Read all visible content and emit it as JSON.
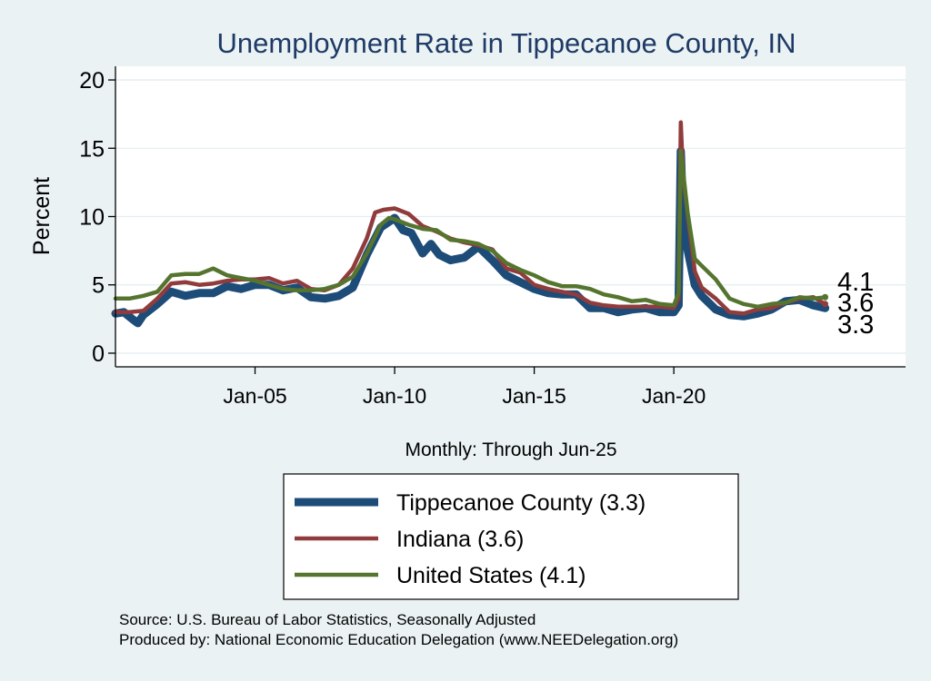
{
  "chart_data": {
    "type": "line",
    "title": "Unemployment Rate in Tippecanoe  County, IN",
    "xlabel": "Monthly: Through Jun-25",
    "ylabel": "Percent",
    "ylim": [
      -1,
      21
    ],
    "y_ticks": [
      0,
      5,
      10,
      15,
      20
    ],
    "y_tick_labels": [
      "0",
      "5",
      "10",
      "15",
      "20"
    ],
    "x_range": [
      2000.0,
      2028.3
    ],
    "x_ticks": [
      2005,
      2010,
      2015,
      2020
    ],
    "x_tick_labels": [
      "Jan-05",
      "Jan-10",
      "Jan-15",
      "Jan-20"
    ],
    "grid": true,
    "legend_position": "bottom",
    "series": [
      {
        "name": "United States",
        "legend_label": "United States (4.1)",
        "color": "#55752f",
        "end_label": "4.1",
        "points": [
          [
            2000.0,
            4.0
          ],
          [
            2000.5,
            4.0
          ],
          [
            2001.0,
            4.2
          ],
          [
            2001.5,
            4.5
          ],
          [
            2002.0,
            5.7
          ],
          [
            2002.5,
            5.8
          ],
          [
            2003.0,
            5.8
          ],
          [
            2003.5,
            6.2
          ],
          [
            2004.0,
            5.7
          ],
          [
            2004.5,
            5.5
          ],
          [
            2005.0,
            5.3
          ],
          [
            2005.5,
            5.0
          ],
          [
            2006.0,
            4.7
          ],
          [
            2006.5,
            4.6
          ],
          [
            2007.0,
            4.6
          ],
          [
            2007.5,
            4.7
          ],
          [
            2008.0,
            5.0
          ],
          [
            2008.5,
            5.6
          ],
          [
            2009.0,
            7.3
          ],
          [
            2009.5,
            9.4
          ],
          [
            2009.8,
            9.9
          ],
          [
            2010.0,
            9.8
          ],
          [
            2010.5,
            9.4
          ],
          [
            2011.0,
            9.1
          ],
          [
            2011.5,
            9.0
          ],
          [
            2012.0,
            8.3
          ],
          [
            2012.5,
            8.2
          ],
          [
            2013.0,
            8.0
          ],
          [
            2013.5,
            7.5
          ],
          [
            2014.0,
            6.6
          ],
          [
            2014.5,
            6.1
          ],
          [
            2015.0,
            5.7
          ],
          [
            2015.5,
            5.2
          ],
          [
            2016.0,
            4.9
          ],
          [
            2016.5,
            4.9
          ],
          [
            2017.0,
            4.7
          ],
          [
            2017.5,
            4.3
          ],
          [
            2018.0,
            4.1
          ],
          [
            2018.5,
            3.8
          ],
          [
            2019.0,
            3.9
          ],
          [
            2019.5,
            3.6
          ],
          [
            2020.0,
            3.5
          ],
          [
            2020.17,
            4.4
          ],
          [
            2020.25,
            14.8
          ],
          [
            2020.33,
            13.3
          ],
          [
            2020.5,
            10.2
          ],
          [
            2020.75,
            6.9
          ],
          [
            2021.0,
            6.4
          ],
          [
            2021.5,
            5.4
          ],
          [
            2022.0,
            4.0
          ],
          [
            2022.5,
            3.6
          ],
          [
            2023.0,
            3.4
          ],
          [
            2023.5,
            3.6
          ],
          [
            2024.0,
            3.7
          ],
          [
            2024.5,
            4.1
          ],
          [
            2025.0,
            4.0
          ],
          [
            2025.42,
            4.1
          ]
        ]
      },
      {
        "name": "Indiana",
        "legend_label": "Indiana (3.6)",
        "color": "#903c3c",
        "end_label": "3.6",
        "points": [
          [
            2000.0,
            3.0
          ],
          [
            2000.5,
            3.0
          ],
          [
            2001.0,
            3.1
          ],
          [
            2001.5,
            4.0
          ],
          [
            2002.0,
            5.1
          ],
          [
            2002.5,
            5.2
          ],
          [
            2003.0,
            5.0
          ],
          [
            2003.5,
            5.1
          ],
          [
            2004.0,
            5.3
          ],
          [
            2004.5,
            5.4
          ],
          [
            2005.0,
            5.4
          ],
          [
            2005.5,
            5.5
          ],
          [
            2006.0,
            5.1
          ],
          [
            2006.5,
            5.3
          ],
          [
            2007.0,
            4.7
          ],
          [
            2007.5,
            4.6
          ],
          [
            2008.0,
            5.0
          ],
          [
            2008.5,
            6.2
          ],
          [
            2009.0,
            8.4
          ],
          [
            2009.3,
            10.3
          ],
          [
            2009.6,
            10.5
          ],
          [
            2010.0,
            10.6
          ],
          [
            2010.5,
            10.2
          ],
          [
            2011.0,
            9.3
          ],
          [
            2011.5,
            8.9
          ],
          [
            2012.0,
            8.4
          ],
          [
            2012.5,
            8.1
          ],
          [
            2013.0,
            7.9
          ],
          [
            2013.5,
            7.6
          ],
          [
            2014.0,
            6.2
          ],
          [
            2014.5,
            5.9
          ],
          [
            2015.0,
            5.0
          ],
          [
            2015.5,
            4.7
          ],
          [
            2016.0,
            4.5
          ],
          [
            2016.5,
            4.3
          ],
          [
            2017.0,
            3.7
          ],
          [
            2017.5,
            3.5
          ],
          [
            2018.0,
            3.4
          ],
          [
            2018.5,
            3.4
          ],
          [
            2019.0,
            3.4
          ],
          [
            2019.5,
            3.4
          ],
          [
            2020.0,
            3.3
          ],
          [
            2020.17,
            4.0
          ],
          [
            2020.25,
            16.9
          ],
          [
            2020.33,
            13.0
          ],
          [
            2020.5,
            10.0
          ],
          [
            2020.75,
            6.0
          ],
          [
            2021.0,
            4.8
          ],
          [
            2021.5,
            4.0
          ],
          [
            2022.0,
            3.0
          ],
          [
            2022.5,
            2.9
          ],
          [
            2023.0,
            3.2
          ],
          [
            2023.5,
            3.3
          ],
          [
            2024.0,
            3.7
          ],
          [
            2024.5,
            4.0
          ],
          [
            2025.0,
            4.1
          ],
          [
            2025.42,
            3.6
          ]
        ]
      },
      {
        "name": "Tippecanoe  County",
        "legend_label": "Tippecanoe  County (3.3)",
        "color": "#1d4c78",
        "end_label": "3.3",
        "points": [
          [
            2000.0,
            2.9
          ],
          [
            2000.3,
            3.0
          ],
          [
            2000.6,
            2.5
          ],
          [
            2000.8,
            2.2
          ],
          [
            2001.0,
            2.8
          ],
          [
            2001.5,
            3.6
          ],
          [
            2002.0,
            4.5
          ],
          [
            2002.5,
            4.2
          ],
          [
            2003.0,
            4.4
          ],
          [
            2003.5,
            4.4
          ],
          [
            2004.0,
            4.9
          ],
          [
            2004.5,
            4.7
          ],
          [
            2005.0,
            5.0
          ],
          [
            2005.5,
            5.0
          ],
          [
            2006.0,
            4.6
          ],
          [
            2006.5,
            4.8
          ],
          [
            2007.0,
            4.1
          ],
          [
            2007.5,
            4.0
          ],
          [
            2008.0,
            4.2
          ],
          [
            2008.5,
            4.8
          ],
          [
            2009.0,
            7.2
          ],
          [
            2009.5,
            9.2
          ],
          [
            2010.0,
            9.9
          ],
          [
            2010.3,
            9.0
          ],
          [
            2010.6,
            8.8
          ],
          [
            2011.0,
            7.3
          ],
          [
            2011.3,
            8.0
          ],
          [
            2011.6,
            7.2
          ],
          [
            2012.0,
            6.8
          ],
          [
            2012.5,
            7.0
          ],
          [
            2013.0,
            7.8
          ],
          [
            2013.5,
            6.8
          ],
          [
            2014.0,
            5.7
          ],
          [
            2014.5,
            5.2
          ],
          [
            2015.0,
            4.7
          ],
          [
            2015.5,
            4.4
          ],
          [
            2016.0,
            4.3
          ],
          [
            2016.5,
            4.3
          ],
          [
            2017.0,
            3.3
          ],
          [
            2017.5,
            3.3
          ],
          [
            2018.0,
            3.0
          ],
          [
            2018.5,
            3.2
          ],
          [
            2019.0,
            3.3
          ],
          [
            2019.5,
            3.0
          ],
          [
            2020.0,
            3.0
          ],
          [
            2020.17,
            3.5
          ],
          [
            2020.25,
            14.8
          ],
          [
            2020.33,
            10.0
          ],
          [
            2020.5,
            7.5
          ],
          [
            2020.75,
            5.0
          ],
          [
            2021.0,
            4.2
          ],
          [
            2021.5,
            3.2
          ],
          [
            2022.0,
            2.8
          ],
          [
            2022.5,
            2.7
          ],
          [
            2023.0,
            2.9
          ],
          [
            2023.5,
            3.2
          ],
          [
            2024.0,
            3.8
          ],
          [
            2024.5,
            3.9
          ],
          [
            2025.0,
            3.5
          ],
          [
            2025.42,
            3.3
          ]
        ]
      }
    ],
    "legend_order": [
      "Tippecanoe  County",
      "Indiana",
      "United States"
    ]
  },
  "source_note": "Source: U.S. Bureau of Labor Statistics, Seasonally Adjusted",
  "producer_note": "Produced by: National Economic Education Delegation (www.NEEDelegation.org)"
}
